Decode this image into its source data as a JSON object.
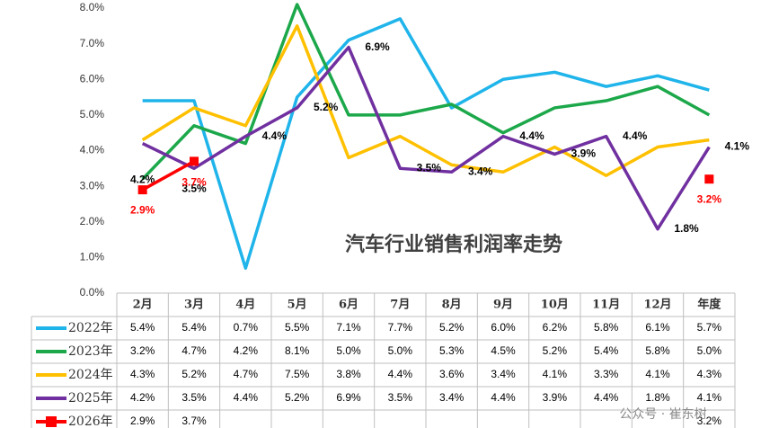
{
  "chart_data": {
    "type": "line",
    "title": "汽车行业销售利润率走势",
    "categories": [
      "2月",
      "3月",
      "4月",
      "5月",
      "6月",
      "7月",
      "8月",
      "9月",
      "10月",
      "11月",
      "12月",
      "年度"
    ],
    "ylim": [
      0,
      8
    ],
    "yticks": [
      {
        "value": 0,
        "label": "0.0%"
      },
      {
        "value": 1,
        "label": "1.0%"
      },
      {
        "value": 2,
        "label": "2.0%"
      },
      {
        "value": 3,
        "label": "3.0%"
      },
      {
        "value": 4,
        "label": "4.0%"
      },
      {
        "value": 5,
        "label": "5.0%"
      },
      {
        "value": 6,
        "label": "6.0%"
      },
      {
        "value": 7,
        "label": "7.0%"
      },
      {
        "value": 8,
        "label": "8.0%"
      }
    ],
    "grid": false,
    "series": [
      {
        "name": "2022年",
        "color": "#1fb4ea",
        "values": [
          5.4,
          5.4,
          0.7,
          5.5,
          7.1,
          7.7,
          5.2,
          6.0,
          6.2,
          5.8,
          6.1,
          5.7
        ],
        "value_labels": [
          "5.4%",
          "5.4%",
          "0.7%",
          "5.5%",
          "7.1%",
          "7.7%",
          "5.2%",
          "6.0%",
          "6.2%",
          "5.8%",
          "6.1%",
          "5.7%"
        ]
      },
      {
        "name": "2023年",
        "color": "#1ca84a",
        "values": [
          3.2,
          4.7,
          4.2,
          8.1,
          5.0,
          5.0,
          5.3,
          4.5,
          5.2,
          5.4,
          5.8,
          5.0
        ],
        "value_labels": [
          "3.2%",
          "4.7%",
          "4.2%",
          "8.1%",
          "5.0%",
          "5.0%",
          "5.3%",
          "4.5%",
          "5.2%",
          "5.4%",
          "5.8%",
          "5.0%"
        ]
      },
      {
        "name": "2024年",
        "color": "#ffc000",
        "values": [
          4.3,
          5.2,
          4.7,
          7.5,
          3.8,
          4.4,
          3.6,
          3.4,
          4.1,
          3.3,
          4.1,
          4.3
        ],
        "value_labels": [
          "4.3%",
          "5.2%",
          "4.7%",
          "7.5%",
          "3.8%",
          "4.4%",
          "3.6%",
          "3.4%",
          "4.1%",
          "3.3%",
          "4.1%",
          "4.3%"
        ]
      },
      {
        "name": "2025年",
        "color": "#7030a0",
        "values": [
          4.2,
          3.5,
          4.4,
          5.2,
          6.9,
          3.5,
          3.4,
          4.4,
          3.9,
          4.4,
          1.8,
          4.1
        ],
        "value_labels": [
          "4.2%",
          "3.5%",
          "4.4%",
          "5.2%",
          "6.9%",
          "3.5%",
          "3.4%",
          "4.4%",
          "3.9%",
          "4.4%",
          "1.8%",
          "4.1%"
        ],
        "data_labels": true
      },
      {
        "name": "2026年",
        "color": "#ff0000",
        "marker": "square",
        "values": [
          2.9,
          3.7,
          null,
          null,
          null,
          null,
          null,
          null,
          null,
          null,
          null,
          3.2
        ],
        "value_labels": [
          "2.9%",
          "3.7%",
          null,
          null,
          null,
          null,
          null,
          null,
          null,
          null,
          null,
          "3.2%"
        ],
        "data_labels": true
      }
    ]
  },
  "watermark": "公众号 · 崔东树"
}
